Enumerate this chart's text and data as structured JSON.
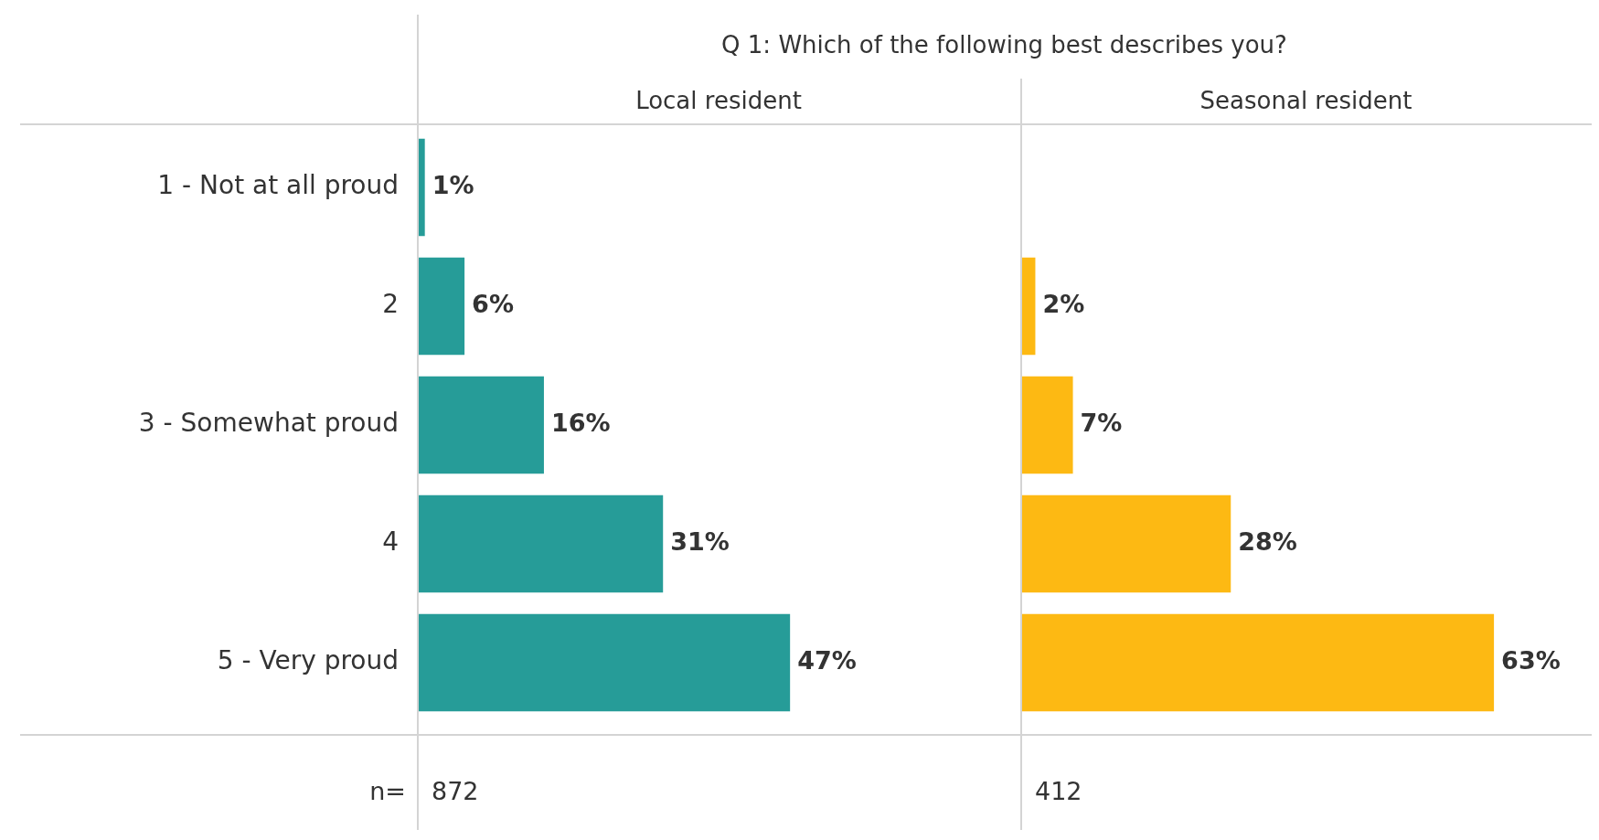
{
  "chart_data": [
    {
      "type": "bar",
      "orientation": "horizontal",
      "title": "Q 1: Which of the following best describes you?",
      "subtitle": "Local resident",
      "categories": [
        "1 - Not at all proud",
        "2",
        "3 - Somewhat proud",
        "4",
        "5 - Very proud"
      ],
      "values": [
        1,
        6,
        16,
        31,
        47
      ],
      "color": "#269c98",
      "value_labels": [
        "1%",
        "6%",
        "16%",
        "31%",
        "47%"
      ],
      "xlim": [
        0,
        76
      ],
      "tick_labels": "y",
      "grid": false,
      "legend": false,
      "annotations": [
        "n=",
        "872"
      ]
    },
    {
      "type": "bar",
      "orientation": "horizontal",
      "subtitle": "Seasonal resident",
      "categories": [
        null,
        null,
        null,
        null,
        null
      ],
      "values": [
        null,
        2,
        7,
        28,
        63
      ],
      "color": "#fdb913",
      "value_labels": [
        null,
        "2%",
        "7%",
        "28%",
        "63%"
      ],
      "xlim": [
        0,
        76
      ],
      "tick_labels": false,
      "grid": false,
      "legend": false,
      "annotations": [
        "412"
      ]
    }
  ]
}
